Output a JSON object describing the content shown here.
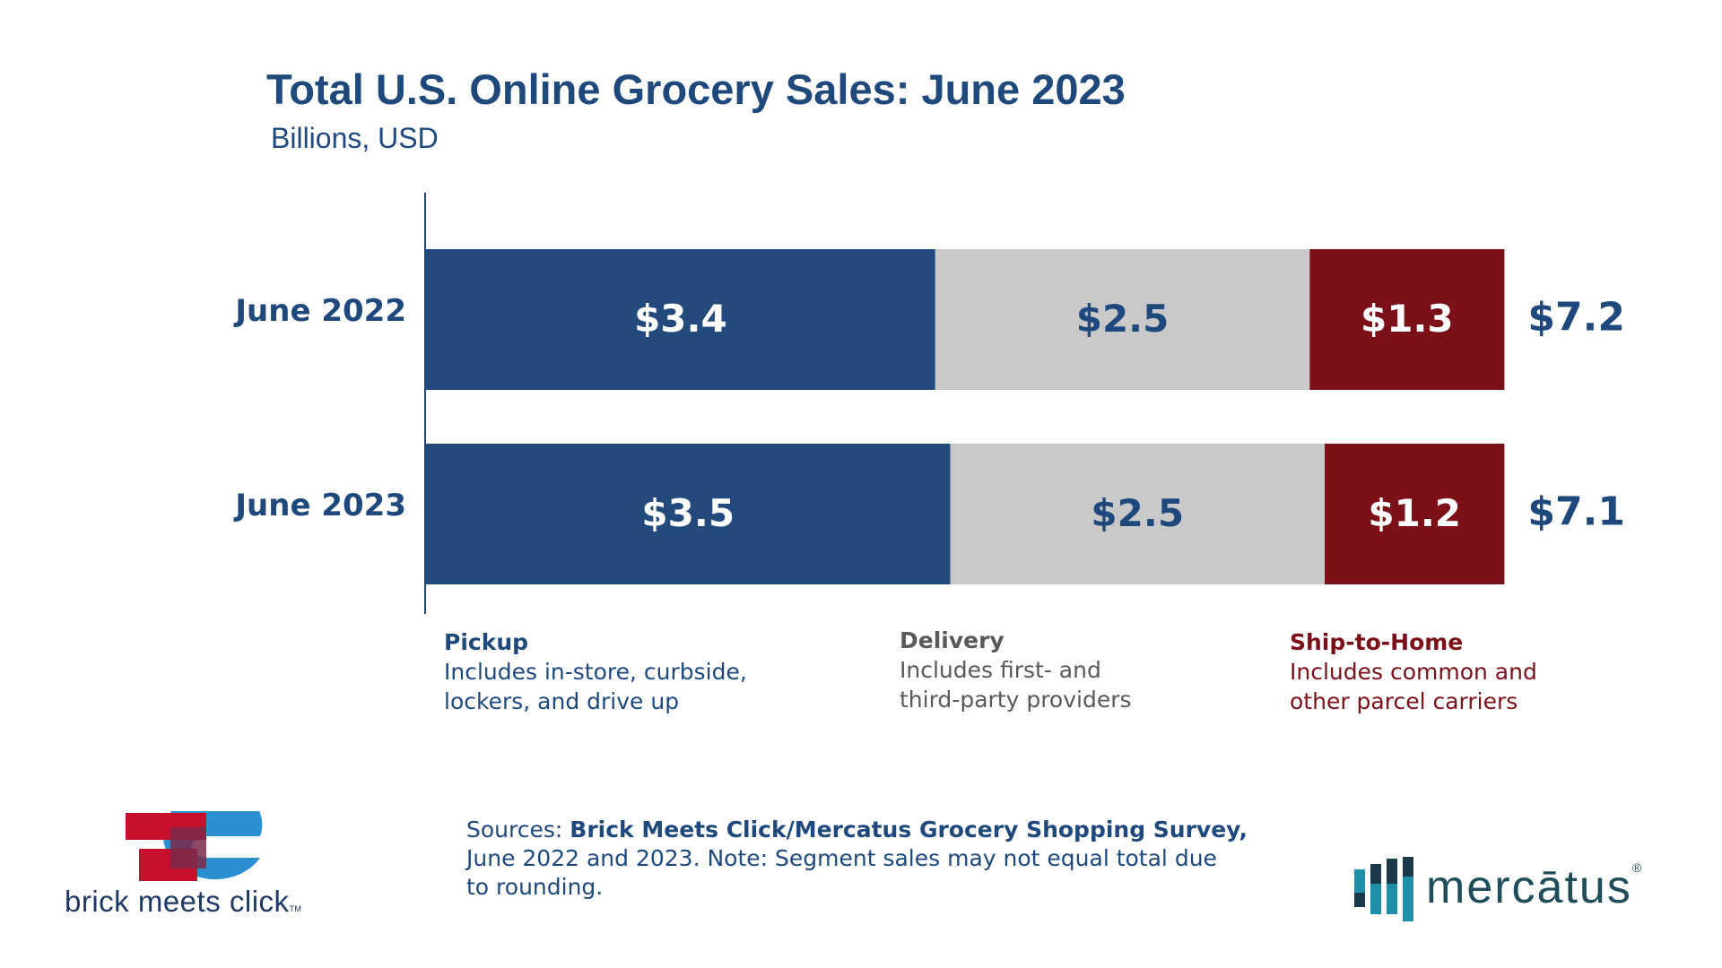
{
  "header": {
    "title": "Total U.S. Online Grocery Sales: June 2023",
    "subtitle": "Billions, USD"
  },
  "chart_data": {
    "type": "bar",
    "orientation": "horizontal",
    "stacked": true,
    "categories": [
      "June 2022",
      "June 2023"
    ],
    "series": [
      {
        "name": "Pickup",
        "values": [
          3.4,
          3.5
        ],
        "labels": [
          "$3.4",
          "$3.5"
        ],
        "color": "#224a7c",
        "label_color": "#ffffff"
      },
      {
        "name": "Delivery",
        "values": [
          2.5,
          2.5
        ],
        "labels": [
          "$2.5",
          "$2.5"
        ],
        "color": "#c9c9c9",
        "label_color": "#1f497d"
      },
      {
        "name": "Ship-to-Home",
        "values": [
          1.3,
          1.2
        ],
        "labels": [
          "$1.3",
          "$1.2"
        ],
        "color": "#7b1019",
        "label_color": "#ffffff"
      }
    ],
    "totals": [
      7.2,
      7.1
    ],
    "total_labels": [
      "$7.2",
      "$7.1"
    ],
    "title": "Total U.S. Online Grocery Sales: June 2023",
    "subtitle": "Billions, USD",
    "xlim": [
      0,
      7.2
    ],
    "grid": false,
    "legend_position": "bottom"
  },
  "legend": {
    "pickup": {
      "heading": "Pickup",
      "line1": "Includes in-store, curbside,",
      "line2": "lockers, and drive up"
    },
    "delivery": {
      "heading": "Delivery",
      "line1": "Includes first- and",
      "line2": "third-party providers"
    },
    "ship": {
      "heading": "Ship-to-Home",
      "line1": "Includes common and",
      "line2": "other parcel carriers"
    }
  },
  "footer": {
    "sources_prefix": "Sources: ",
    "sources_bold": "Brick Meets Click/Mercatus Grocery Shopping Survey,",
    "sources_line2": "June 2022 and 2023. Note: Segment sales may not equal total due",
    "sources_line3": "to rounding."
  },
  "logos": {
    "bmc_name": "brick meets click",
    "bmc_tm": "TM",
    "mercatus_name": "mercātus",
    "mercatus_reg": "®"
  },
  "colors": {
    "navy": "#1f497d",
    "pickup": "#224a7c",
    "delivery": "#c9c9c9",
    "ship": "#7b1019",
    "teal": "#1e8fa8"
  }
}
